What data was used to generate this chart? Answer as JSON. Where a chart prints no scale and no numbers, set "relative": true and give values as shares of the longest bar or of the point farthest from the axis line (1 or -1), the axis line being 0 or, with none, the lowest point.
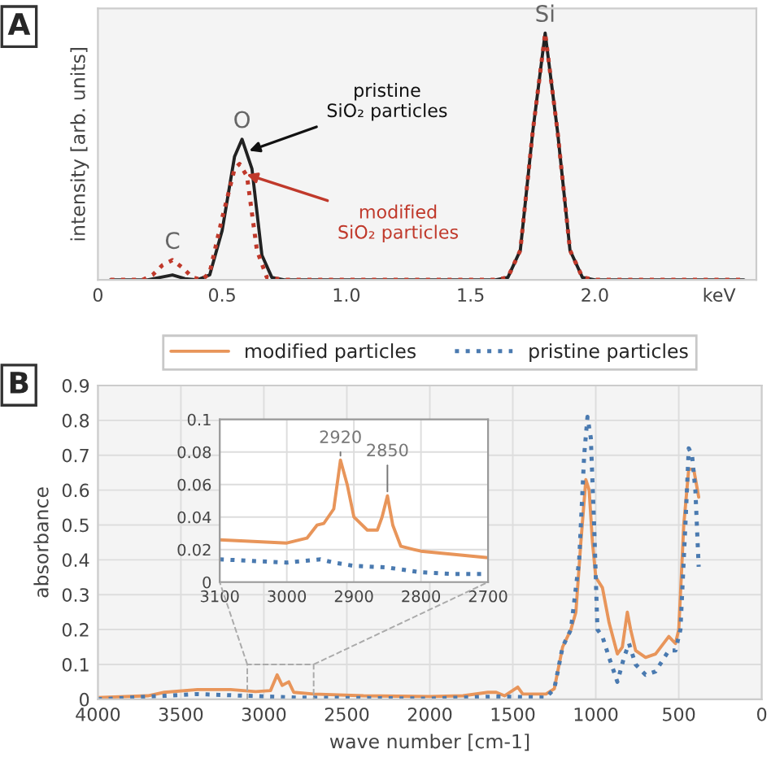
{
  "chart_data": [
    {
      "type": "line",
      "relative": true,
      "ylabel": "intensity [arb. units]",
      "xlim": [
        0,
        2.65
      ],
      "xticks": [
        0,
        0.5,
        {
          "value": 1,
          "label": "1.0"
        },
        1.5,
        {
          "value": 2,
          "label": "2.0"
        },
        {
          "value": 2.5,
          "label": "keV"
        }
      ],
      "grid": false,
      "legend": false,
      "marker": "none",
      "annotations": [
        "A",
        {
          "text": "C",
          "x": 0.3,
          "y": 0.08
        },
        {
          "text": "O",
          "x": 0.58,
          "y": 0.57
        },
        {
          "text": "Si",
          "x": 1.8,
          "y": 1.0
        },
        {
          "text": "pristine\nSiO₂ particles",
          "x": 0.6,
          "y": 0.52
        },
        {
          "text": "modified\nSiO₂ particles",
          "x": 0.59,
          "y": 0.43
        }
      ],
      "series": [
        {
          "color": "#222222",
          "line_style": "solid",
          "x": [
            0.05,
            0.2,
            0.25,
            0.3,
            0.35,
            0.4,
            0.45,
            0.5,
            0.55,
            0.58,
            0.62,
            0.66,
            0.7,
            0.75,
            1.6,
            1.65,
            1.7,
            1.75,
            1.8,
            1.85,
            1.9,
            1.95,
            2.0,
            2.6
          ],
          "values": [
            0,
            0,
            0.01,
            0.02,
            0.005,
            0,
            0.02,
            0.2,
            0.5,
            0.57,
            0.45,
            0.1,
            0.01,
            0,
            0,
            0.01,
            0.12,
            0.6,
            1.0,
            0.6,
            0.12,
            0.01,
            0,
            0
          ]
        },
        {
          "color": "#c0392b",
          "line_style": "dotted",
          "x": [
            0.05,
            0.18,
            0.22,
            0.26,
            0.3,
            0.34,
            0.38,
            0.42,
            0.45,
            0.5,
            0.55,
            0.57,
            0.6,
            0.64,
            0.68,
            0.75,
            1.6,
            1.65,
            1.7,
            1.75,
            1.8,
            1.85,
            1.9,
            1.95,
            2.0,
            2.6
          ],
          "values": [
            0,
            0,
            0.02,
            0.06,
            0.08,
            0.05,
            0.01,
            0,
            0.03,
            0.25,
            0.45,
            0.47,
            0.42,
            0.12,
            0.01,
            0,
            0,
            0.01,
            0.12,
            0.6,
            1.0,
            0.6,
            0.12,
            0.01,
            0,
            0
          ]
        }
      ]
    },
    {
      "type": "line",
      "xlabel": "wave number [cm-1]",
      "ylabel": "absorbance",
      "xlim": [
        4000,
        0
      ],
      "xticks": [
        4000,
        3500,
        3000,
        2500,
        2000,
        1500,
        1000,
        500,
        0
      ],
      "ylim": [
        0,
        0.9
      ],
      "yticks": [
        0,
        0.1,
        0.2,
        0.3,
        0.4,
        0.5,
        0.6,
        0.7,
        0.8,
        0.9
      ],
      "grid": true,
      "legend": "top",
      "marker": "none",
      "annotations": [
        "B"
      ],
      "series": [
        {
          "name": "modified particles",
          "color": "#e8955a",
          "line_style": "solid",
          "x": [
            4000,
            3700,
            3600,
            3400,
            3200,
            3050,
            2960,
            2920,
            2890,
            2850,
            2820,
            2700,
            2400,
            2000,
            1800,
            1650,
            1600,
            1550,
            1470,
            1440,
            1300,
            1250,
            1200,
            1150,
            1120,
            1090,
            1060,
            1040,
            1020,
            1000,
            960,
            920,
            870,
            840,
            810,
            790,
            760,
            700,
            640,
            560,
            520,
            500,
            470,
            440,
            410,
            380
          ],
          "values": [
            0.005,
            0.01,
            0.02,
            0.028,
            0.028,
            0.022,
            0.025,
            0.07,
            0.04,
            0.05,
            0.02,
            0.015,
            0.01,
            0.008,
            0.01,
            0.02,
            0.02,
            0.01,
            0.035,
            0.015,
            0.015,
            0.03,
            0.15,
            0.2,
            0.25,
            0.45,
            0.63,
            0.6,
            0.45,
            0.35,
            0.32,
            0.22,
            0.13,
            0.15,
            0.25,
            0.2,
            0.14,
            0.12,
            0.13,
            0.18,
            0.16,
            0.2,
            0.5,
            0.66,
            0.66,
            0.58
          ]
        },
        {
          "name": "pristine particles",
          "color": "#4a7ab0",
          "line_style": "dotted",
          "x": [
            4000,
            3600,
            3400,
            3100,
            2800,
            2000,
            1600,
            1300,
            1250,
            1200,
            1150,
            1100,
            1070,
            1050,
            1030,
            1010,
            990,
            960,
            920,
            870,
            830,
            800,
            760,
            700,
            640,
            560,
            520,
            490,
            460,
            440,
            420,
            400,
            380
          ],
          "values": [
            0,
            0.01,
            0.015,
            0.01,
            0.005,
            0.002,
            0.008,
            0.005,
            0.03,
            0.15,
            0.2,
            0.4,
            0.7,
            0.81,
            0.75,
            0.5,
            0.2,
            0.18,
            0.12,
            0.05,
            0.12,
            0.16,
            0.1,
            0.07,
            0.08,
            0.14,
            0.14,
            0.2,
            0.5,
            0.72,
            0.7,
            0.6,
            0.38
          ]
        }
      ]
    },
    {
      "type": "line",
      "xlim": [
        3100,
        2700
      ],
      "xticks": [
        3100,
        3000,
        2900,
        2800,
        2700
      ],
      "ylim": [
        0,
        0.1
      ],
      "yticks": [
        0,
        0.02,
        0.04,
        0.06,
        0.08,
        0.1
      ],
      "grid": true,
      "legend": false,
      "marker": "none",
      "annotations": [
        {
          "text": "2920",
          "x": 2920,
          "y": 0.075
        },
        {
          "text": "2850",
          "x": 2850,
          "y": 0.053
        }
      ],
      "series": [
        {
          "color": "#e8955a",
          "line_style": "solid",
          "x": [
            3100,
            3050,
            3000,
            2970,
            2955,
            2945,
            2930,
            2920,
            2910,
            2900,
            2880,
            2865,
            2858,
            2850,
            2842,
            2830,
            2800,
            2750,
            2700
          ],
          "values": [
            0.026,
            0.025,
            0.024,
            0.027,
            0.035,
            0.036,
            0.045,
            0.075,
            0.06,
            0.04,
            0.032,
            0.032,
            0.04,
            0.053,
            0.035,
            0.022,
            0.019,
            0.017,
            0.015
          ]
        },
        {
          "color": "#4a7ab0",
          "line_style": "dotted",
          "x": [
            3100,
            3050,
            3000,
            2950,
            2930,
            2900,
            2850,
            2800,
            2750,
            2700
          ],
          "values": [
            0.014,
            0.013,
            0.012,
            0.014,
            0.012,
            0.01,
            0.009,
            0.006,
            0.005,
            0.005
          ]
        }
      ]
    }
  ]
}
